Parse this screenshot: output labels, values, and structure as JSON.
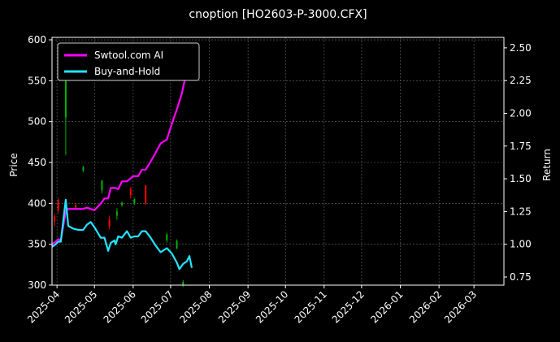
{
  "chart_data": {
    "type": "line",
    "title": "cnoption [HO2603-P-3000.CFX]",
    "xlabel": "",
    "ylabel_left": "Price",
    "ylabel_right": "Return",
    "x_tick_labels": [
      "2025-04",
      "2025-05",
      "2025-06",
      "2025-07",
      "2025-08",
      "2025-09",
      "2025-10",
      "2025-11",
      "2025-12",
      "2026-01",
      "2026-02",
      "2026-03"
    ],
    "x_range": [
      "2025-03-28",
      "2026-03-25"
    ],
    "ylim_left": [
      300,
      603
    ],
    "ylim_right": [
      0.688,
      2.58
    ],
    "left_ticks": [
      300,
      350,
      400,
      450,
      500,
      550,
      600
    ],
    "right_ticks": [
      0.75,
      1.0,
      1.25,
      1.5,
      1.75,
      2.0,
      2.25,
      2.5
    ],
    "grid": true,
    "legend_position": "top-left",
    "colors": {
      "up": "#00b400",
      "down": "#ff0000",
      "ai": "#ff00ff",
      "hold": "#22e5ff",
      "background": "#000000",
      "text": "#ffffff"
    },
    "series": [
      {
        "name": "Swtool.com AI",
        "axis": "right",
        "color": "#ff00ff",
        "points": [
          [
            "2025-03-28",
            1.0
          ],
          [
            "2025-03-31",
            1.02
          ],
          [
            "2025-04-02",
            1.04
          ],
          [
            "2025-04-04",
            1.03
          ],
          [
            "2025-04-08",
            1.25
          ],
          [
            "2025-04-10",
            1.27
          ],
          [
            "2025-04-14",
            1.27
          ],
          [
            "2025-04-18",
            1.27
          ],
          [
            "2025-04-22",
            1.27
          ],
          [
            "2025-04-25",
            1.28
          ],
          [
            "2025-04-28",
            1.27
          ],
          [
            "2025-05-01",
            1.26
          ],
          [
            "2025-05-06",
            1.31
          ],
          [
            "2025-05-09",
            1.35
          ],
          [
            "2025-05-12",
            1.35
          ],
          [
            "2025-05-14",
            1.43
          ],
          [
            "2025-05-18",
            1.43
          ],
          [
            "2025-05-20",
            1.42
          ],
          [
            "2025-05-23",
            1.48
          ],
          [
            "2025-05-27",
            1.48
          ],
          [
            "2025-06-01",
            1.52
          ],
          [
            "2025-06-05",
            1.52
          ],
          [
            "2025-06-08",
            1.57
          ],
          [
            "2025-06-11",
            1.57
          ],
          [
            "2025-06-15",
            1.63
          ],
          [
            "2025-06-19",
            1.7
          ],
          [
            "2025-06-23",
            1.77
          ],
          [
            "2025-06-28",
            1.8
          ],
          [
            "2025-07-02",
            1.92
          ],
          [
            "2025-07-06",
            2.03
          ],
          [
            "2025-07-10",
            2.15
          ],
          [
            "2025-07-14",
            2.33
          ],
          [
            "2025-07-16",
            2.32
          ],
          [
            "2025-07-18",
            2.52
          ]
        ]
      },
      {
        "name": "Buy-and-Hold",
        "axis": "right",
        "color": "#22e5ff",
        "points": [
          [
            "2025-03-28",
            0.98
          ],
          [
            "2025-03-31",
            1.0
          ],
          [
            "2025-04-02",
            1.02
          ],
          [
            "2025-04-04",
            1.02
          ],
          [
            "2025-04-08",
            1.34
          ],
          [
            "2025-04-10",
            1.14
          ],
          [
            "2025-04-14",
            1.12
          ],
          [
            "2025-04-18",
            1.11
          ],
          [
            "2025-04-22",
            1.11
          ],
          [
            "2025-04-25",
            1.15
          ],
          [
            "2025-04-28",
            1.17
          ],
          [
            "2025-05-01",
            1.13
          ],
          [
            "2025-05-06",
            1.05
          ],
          [
            "2025-05-09",
            1.05
          ],
          [
            "2025-05-12",
            0.95
          ],
          [
            "2025-05-14",
            1.01
          ],
          [
            "2025-05-17",
            1.03
          ],
          [
            "2025-05-18",
            1.0
          ],
          [
            "2025-05-20",
            1.06
          ],
          [
            "2025-05-23",
            1.05
          ],
          [
            "2025-05-27",
            1.1
          ],
          [
            "2025-05-30",
            1.05
          ],
          [
            "2025-06-02",
            1.06
          ],
          [
            "2025-06-05",
            1.06
          ],
          [
            "2025-06-08",
            1.1
          ],
          [
            "2025-06-11",
            1.1
          ],
          [
            "2025-06-15",
            1.05
          ],
          [
            "2025-06-19",
            0.99
          ],
          [
            "2025-06-23",
            0.94
          ],
          [
            "2025-06-28",
            0.97
          ],
          [
            "2025-07-02",
            0.93
          ],
          [
            "2025-07-06",
            0.86
          ],
          [
            "2025-07-08",
            0.81
          ],
          [
            "2025-07-11",
            0.85
          ],
          [
            "2025-07-14",
            0.87
          ],
          [
            "2025-07-16",
            0.91
          ],
          [
            "2025-07-18",
            0.82
          ]
        ]
      }
    ],
    "candles": [
      {
        "date": "2025-03-30",
        "open": 384,
        "close": 378,
        "high": 387,
        "low": 372
      },
      {
        "date": "2025-04-02",
        "open": 404,
        "close": 392,
        "high": 406,
        "low": 388
      },
      {
        "date": "2025-04-08",
        "open": 505,
        "close": 560,
        "high": 568,
        "low": 459
      },
      {
        "date": "2025-04-16",
        "open": 398,
        "close": 395,
        "high": 400,
        "low": 392
      },
      {
        "date": "2025-04-22",
        "open": 440,
        "close": 444,
        "high": 446,
        "low": 438
      },
      {
        "date": "2025-05-07",
        "open": 416,
        "close": 428,
        "high": 428,
        "low": 412
      },
      {
        "date": "2025-05-13",
        "open": 380,
        "close": 372,
        "high": 385,
        "low": 368
      },
      {
        "date": "2025-05-19",
        "open": 385,
        "close": 390,
        "high": 394,
        "low": 380
      },
      {
        "date": "2025-05-23",
        "open": 398,
        "close": 401,
        "high": 402,
        "low": 396
      },
      {
        "date": "2025-05-30",
        "open": 418,
        "close": 410,
        "high": 420,
        "low": 406
      },
      {
        "date": "2025-06-02",
        "open": 400,
        "close": 405,
        "high": 406,
        "low": 398
      },
      {
        "date": "2025-06-11",
        "open": 422,
        "close": 400,
        "high": 422,
        "low": 398
      },
      {
        "date": "2025-06-28",
        "open": 355,
        "close": 362,
        "high": 364,
        "low": 352
      },
      {
        "date": "2025-07-06",
        "open": 345,
        "close": 354,
        "high": 356,
        "low": 344
      },
      {
        "date": "2025-07-11",
        "open": 300,
        "close": 304,
        "high": 306,
        "low": 298
      }
    ]
  }
}
